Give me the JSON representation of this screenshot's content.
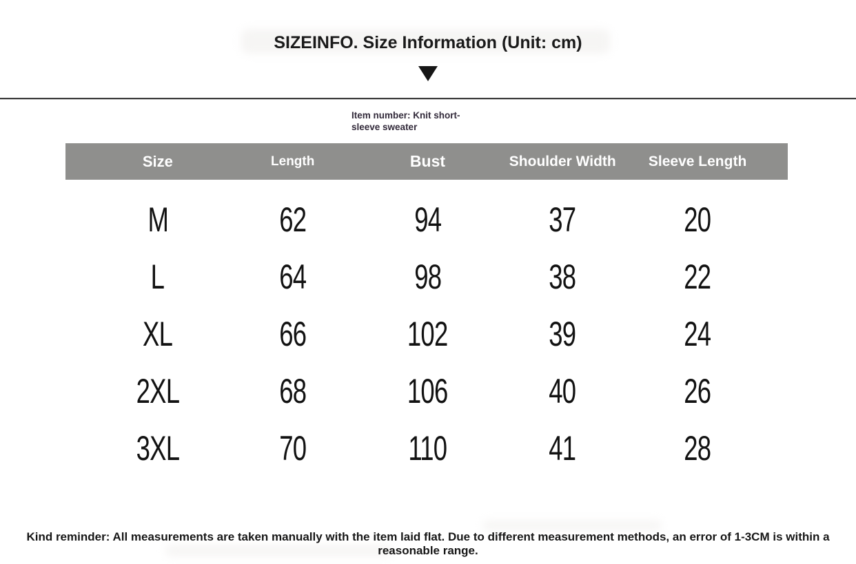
{
  "page": {
    "title": "SIZEINFO. Size Information (Unit: cm)",
    "item_number_line1": "Item number: Knit short-",
    "item_number_line2": "sleeve sweater",
    "reminder": "Kind reminder: All measurements are taken manually with the item laid flat. Due to different measurement methods, an error of 1-3CM is within a reasonable range."
  },
  "table": {
    "columns": [
      "Size",
      "Length",
      "Bust",
      "Shoulder Width",
      "Sleeve Length"
    ],
    "rows": [
      [
        "M",
        "62",
        "94",
        "37",
        "20"
      ],
      [
        "L",
        "64",
        "98",
        "38",
        "22"
      ],
      [
        "XL",
        "66",
        "102",
        "39",
        "24"
      ],
      [
        "2XL",
        "68",
        "106",
        "40",
        "26"
      ],
      [
        "3XL",
        "70",
        "110",
        "41",
        "28"
      ]
    ],
    "unit": "cm"
  },
  "icons": {
    "dropdown_arrow": "down-triangle"
  },
  "colors": {
    "header_bg": "#8f8f8d",
    "header_text": "#ffffff",
    "divider": "#3c3c3c",
    "text": "#1a1a1a",
    "item_text": "#322a3a"
  }
}
